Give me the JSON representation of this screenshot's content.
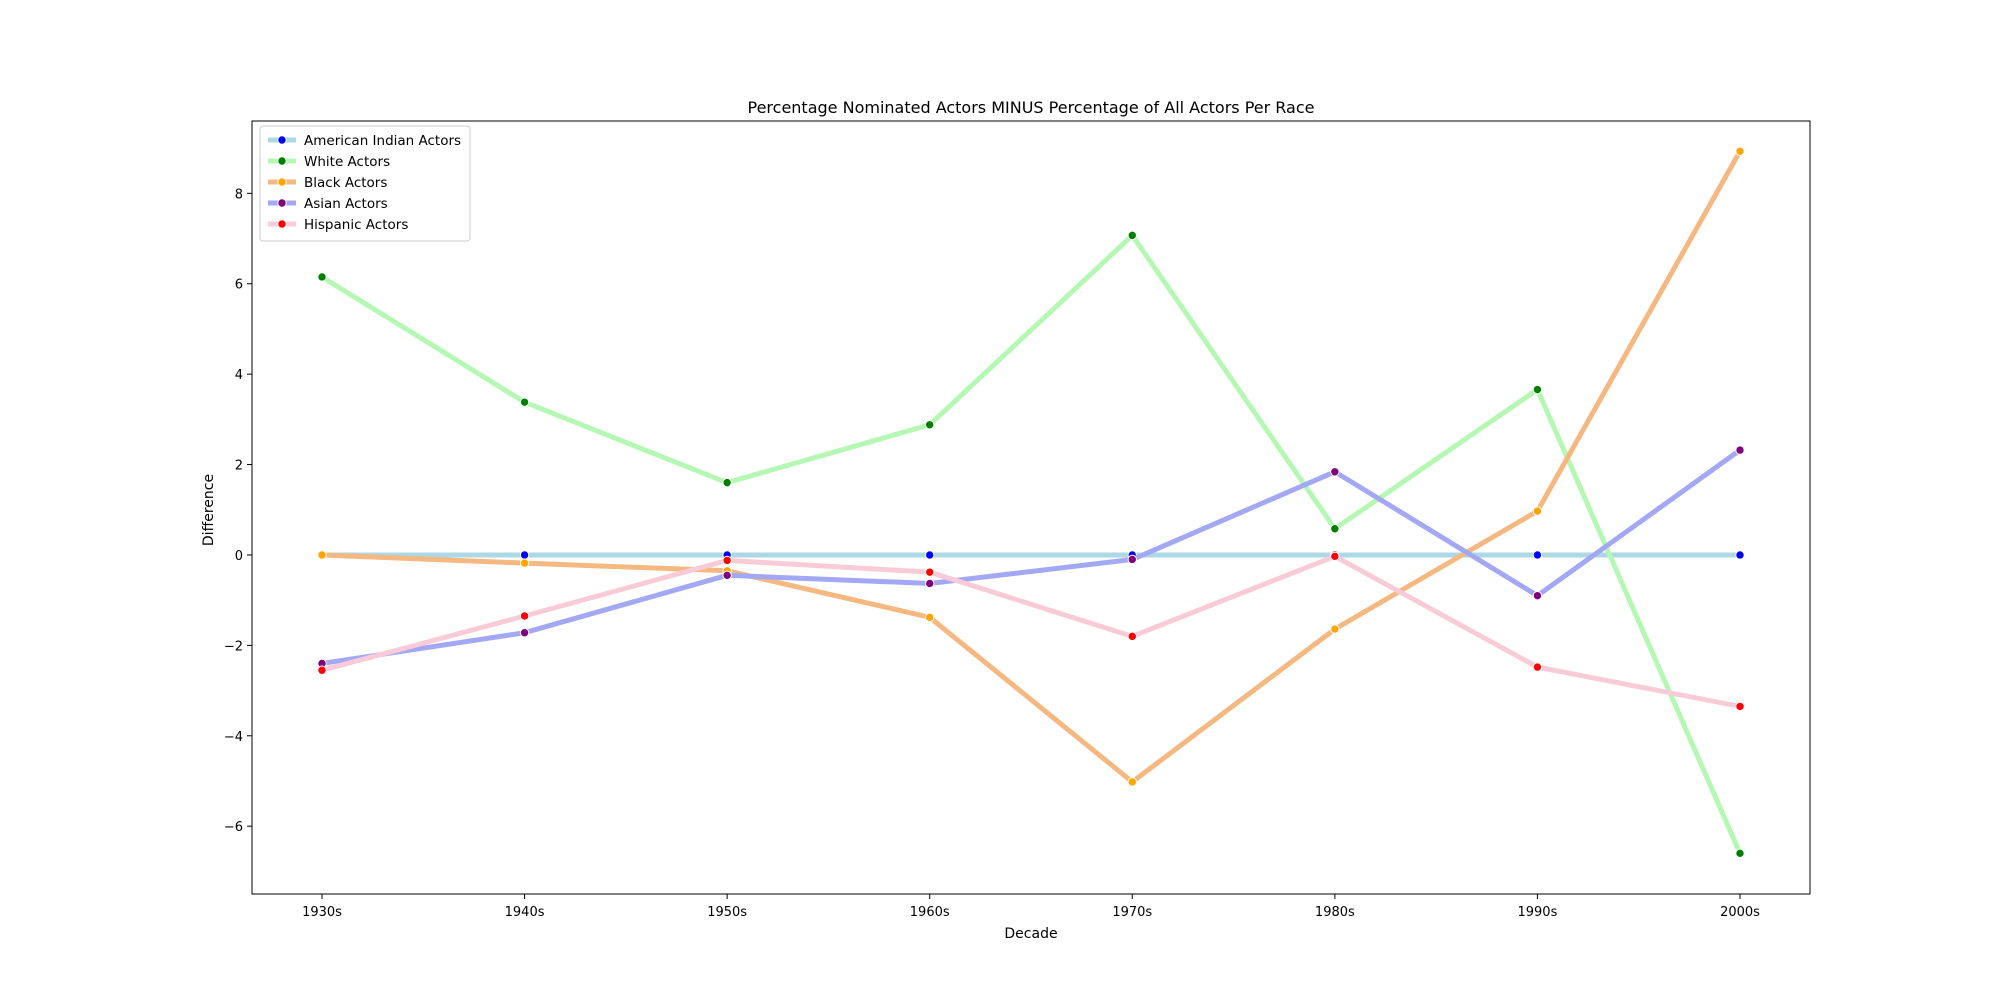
{
  "chart_data": {
    "type": "line",
    "title": "Percentage Nominated Actors MINUS Percentage of All Actors Per Race",
    "xlabel": "Decade",
    "ylabel": "Difference",
    "categories": [
      "1930s",
      "1940s",
      "1950s",
      "1960s",
      "1970s",
      "1980s",
      "1990s",
      "2000s"
    ],
    "ylim": [
      -7.5,
      9.6
    ],
    "yticks": [
      -6,
      -4,
      -2,
      0,
      2,
      4,
      6,
      8
    ],
    "grid": false,
    "legend_position": "top-left",
    "series": [
      {
        "name": "American Indian Actors",
        "line_color": "#add8e6",
        "marker_color": "#0000ff",
        "values": [
          0,
          0,
          0,
          0,
          0,
          0,
          0,
          0
        ]
      },
      {
        "name": "White Actors",
        "line_color": "#b4f8b4",
        "marker_color": "#008000",
        "values": [
          6.15,
          3.38,
          1.6,
          2.88,
          7.07,
          0.58,
          3.66,
          -6.6
        ]
      },
      {
        "name": "Black Actors",
        "line_color": "#f5b880",
        "marker_color": "#ffa500",
        "values": [
          0.0,
          -0.18,
          -0.35,
          -1.38,
          -5.02,
          -1.64,
          0.97,
          8.93
        ]
      },
      {
        "name": "Asian Actors",
        "line_color": "#a3a8f5",
        "marker_color": "#800080",
        "values": [
          -2.4,
          -1.72,
          -0.45,
          -0.63,
          -0.1,
          1.84,
          -0.9,
          2.32
        ]
      },
      {
        "name": "Hispanic Actors",
        "line_color": "#f9cbd9",
        "marker_color": "#ff0000",
        "values": [
          -2.55,
          -1.35,
          -0.12,
          -0.38,
          -1.8,
          -0.03,
          -2.48,
          -3.35
        ]
      }
    ]
  }
}
